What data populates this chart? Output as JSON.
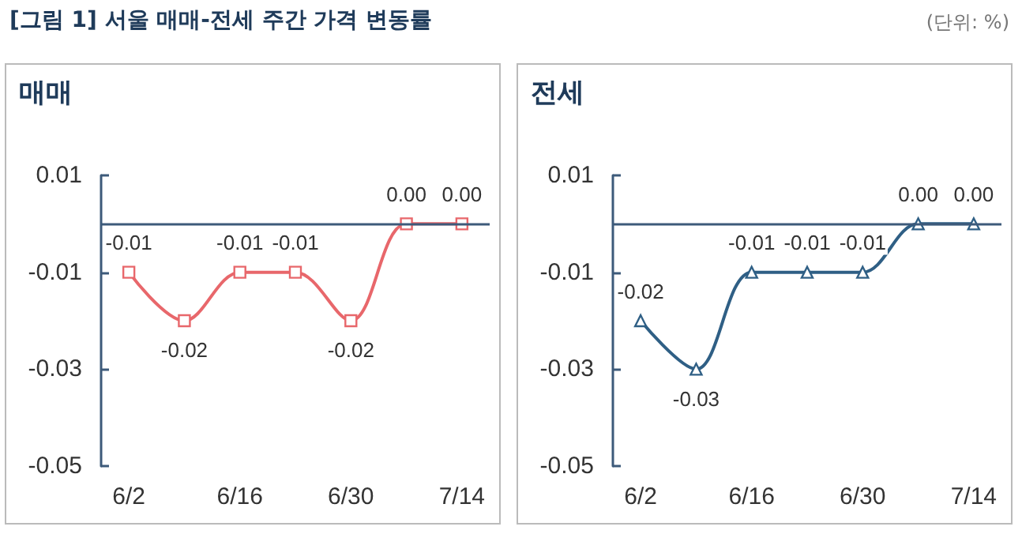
{
  "chart_data": [
    {
      "type": "line",
      "title": "[그림 1] 서울 매매-전세 주간 가격 변동률",
      "subtitle": "매매",
      "categories": [
        "6/2",
        null,
        "6/16",
        null,
        "6/30",
        null,
        "7/14"
      ],
      "series": [
        {
          "color": "#e8676b",
          "values": [
            -0.01,
            -0.02,
            -0.01,
            -0.01,
            -0.02,
            0.0,
            0.0
          ]
        }
      ],
      "value_labels": [
        "-0.01",
        "-0.02",
        "-0.01",
        "-0.01",
        "-0.02",
        "0.00",
        "0.00"
      ],
      "ylim": [
        -0.05,
        0.01
      ],
      "yticks": [
        -0.05,
        -0.03,
        -0.01,
        0.01
      ],
      "marker": "square",
      "grid": false,
      "ref_lines": [
        {
          "axis": "y",
          "value": 0,
          "color": "#3d5a7a"
        }
      ]
    },
    {
      "type": "line",
      "title": "전세",
      "annotations": [
        "(단위: %)"
      ],
      "categories": [
        "6/2",
        null,
        "6/16",
        null,
        "6/30",
        null,
        "7/14"
      ],
      "series": [
        {
          "color": "#2f5f85",
          "values": [
            -0.02,
            -0.03,
            -0.01,
            -0.01,
            -0.01,
            0.0,
            0.0
          ]
        }
      ],
      "value_labels": [
        "-0.02",
        "-0.03",
        "-0.01",
        "-0.01",
        "-0.01",
        "0.00",
        "0.00"
      ],
      "ylim": [
        -0.05,
        0.01
      ],
      "yticks": [
        -0.05,
        -0.03,
        -0.01,
        0.01
      ],
      "marker": "triangle",
      "grid": false,
      "ref_lines": [
        {
          "axis": "y",
          "value": 0,
          "color": "#3d5a7a"
        }
      ]
    }
  ]
}
